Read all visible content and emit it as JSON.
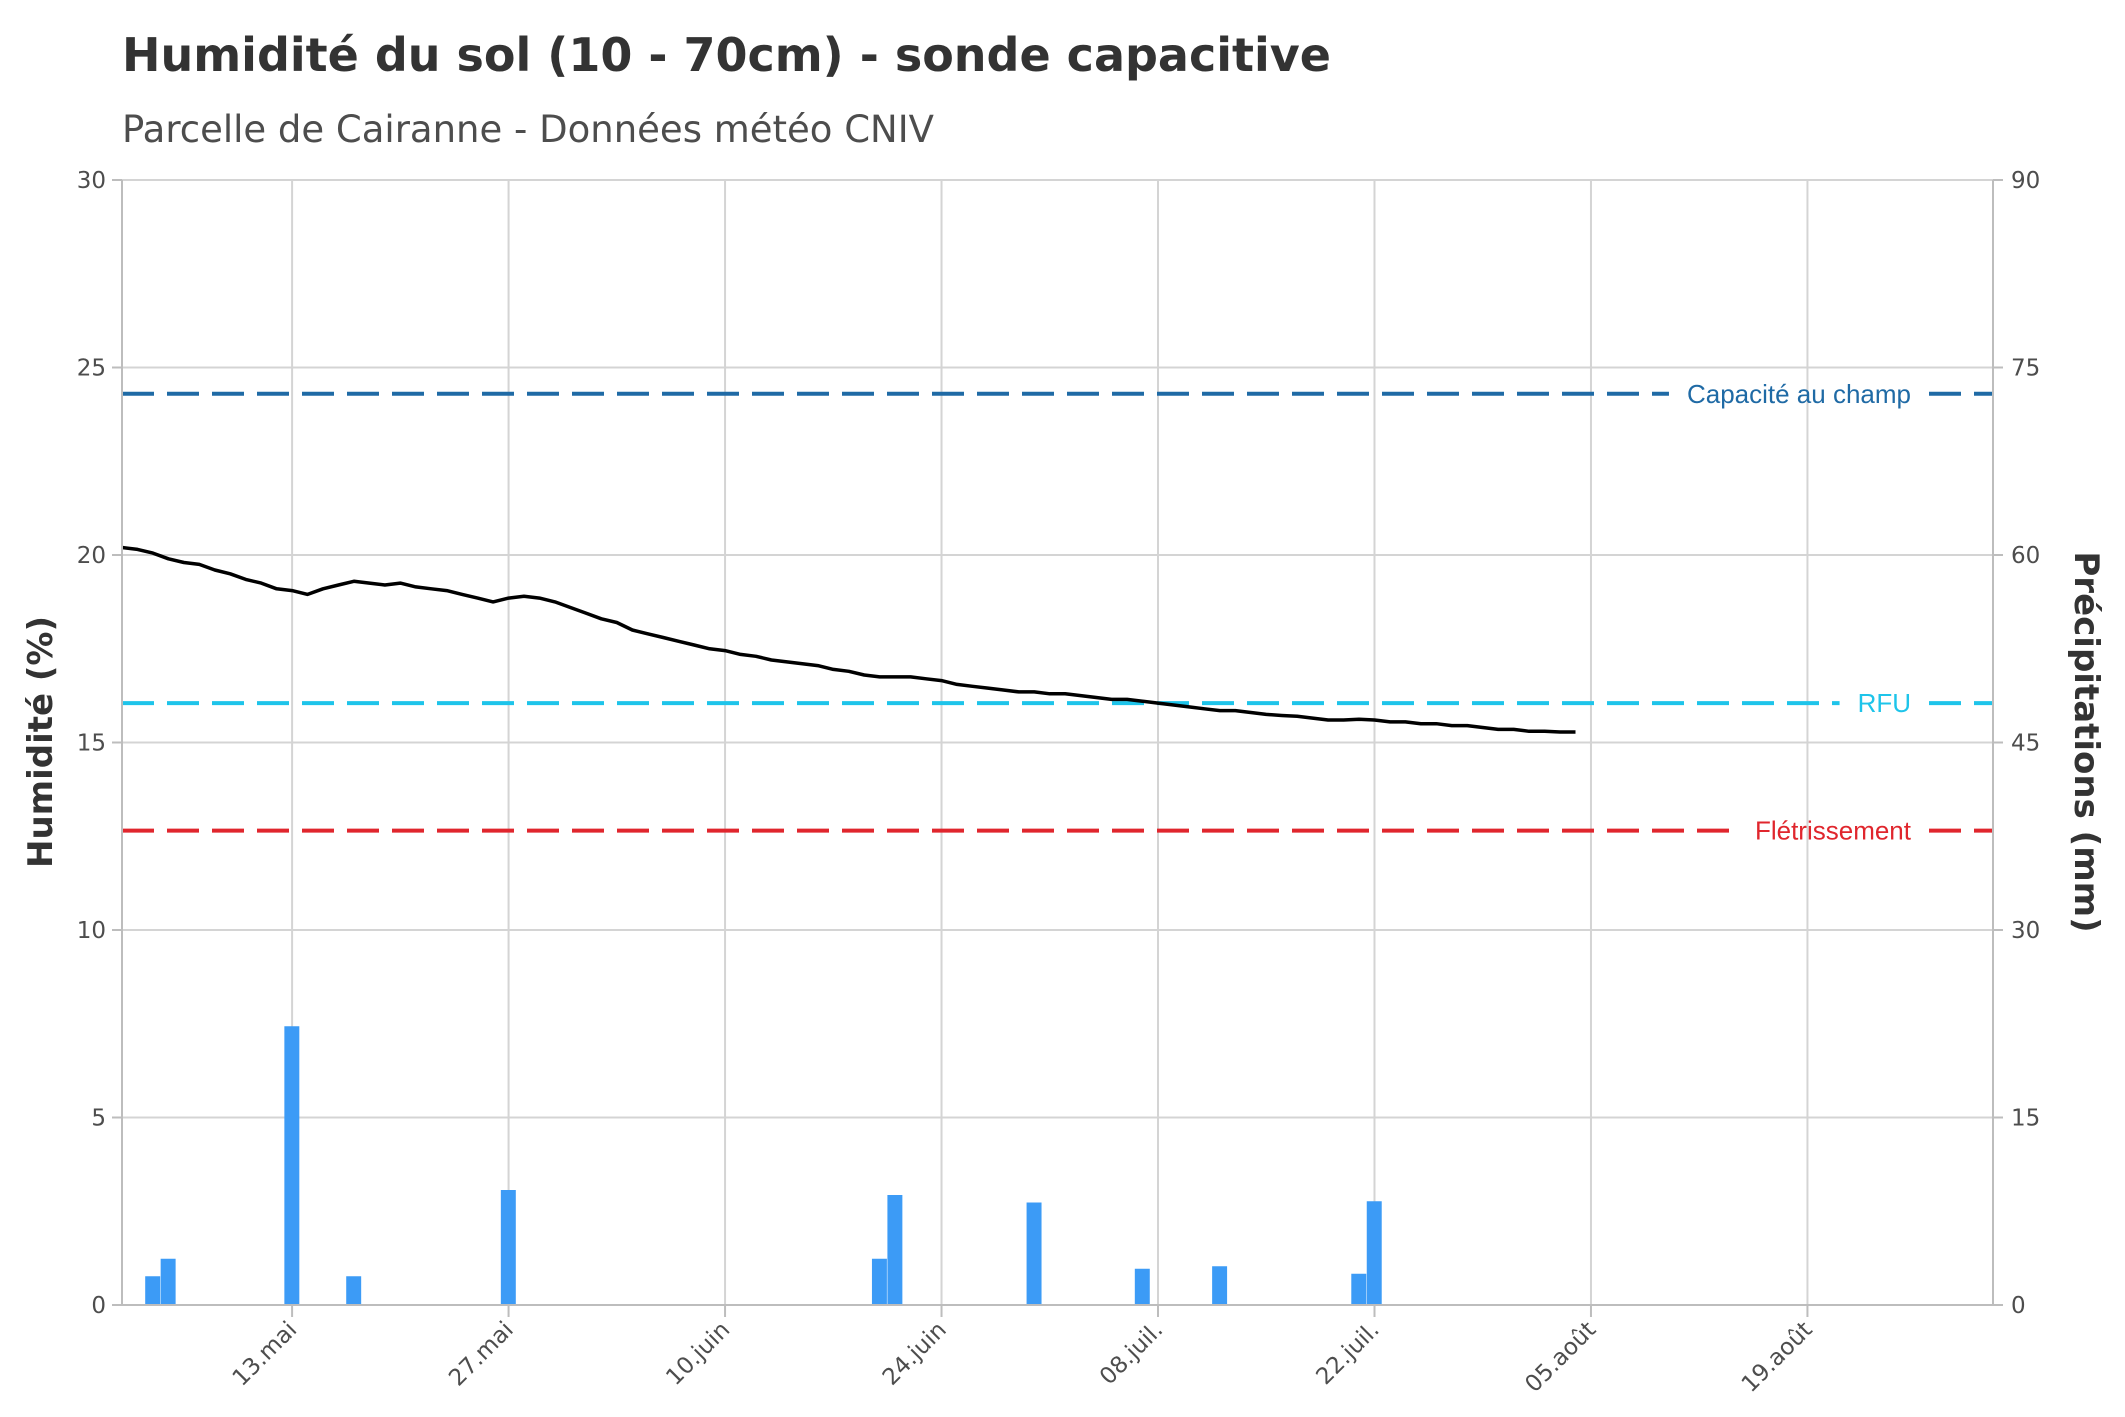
{
  "title": "Humidité du sol (10 - 70cm) - sonde capacitive",
  "subtitle": "Parcelle de Cairanne - Données météo CNIV",
  "chart_data": {
    "type": "line",
    "x_axis": {
      "ticks": [
        "2022-05-13",
        "2022-05-27",
        "2022-06-10",
        "2022-06-24",
        "2022-07-08",
        "2022-07-22",
        "2022-08-05",
        "2022-08-19"
      ],
      "tick_labels": [
        "13.mai",
        "27.mai",
        "10.juin",
        "24.juin",
        "08.juil.",
        "22.juil.",
        "05.août",
        "19.août"
      ],
      "range": [
        "2022-05-02",
        "2022-08-31"
      ],
      "grid": true
    },
    "y_left": {
      "label": "Humidité (%)",
      "range": [
        0,
        30
      ],
      "ticks": [
        0,
        5,
        10,
        15,
        20,
        25,
        30
      ]
    },
    "y_right": {
      "label": "Précipitations (mm)",
      "range": [
        0,
        90
      ],
      "ticks": [
        0,
        15,
        30,
        45,
        60,
        75,
        90
      ]
    },
    "reference_lines": [
      {
        "name": "Capacité au champ",
        "value": 24.3,
        "color": "#1f6aa5"
      },
      {
        "name": "RFU",
        "value": 16.05,
        "color": "#1ec4ea"
      },
      {
        "name": "Flétrissement",
        "value": 12.65,
        "color": "#e0262d"
      }
    ],
    "series": [
      {
        "type": "line",
        "axis": "left",
        "color": "#000000",
        "points": [
          [
            "2022-05-02",
            20.2
          ],
          [
            "2022-05-03",
            20.15
          ],
          [
            "2022-05-04",
            20.05
          ],
          [
            "2022-05-05",
            19.9
          ],
          [
            "2022-05-06",
            19.8
          ],
          [
            "2022-05-07",
            19.75
          ],
          [
            "2022-05-08",
            19.6
          ],
          [
            "2022-05-09",
            19.5
          ],
          [
            "2022-05-10",
            19.35
          ],
          [
            "2022-05-11",
            19.25
          ],
          [
            "2022-05-12",
            19.1
          ],
          [
            "2022-05-13",
            19.05
          ],
          [
            "2022-05-14",
            18.95
          ],
          [
            "2022-05-15",
            19.1
          ],
          [
            "2022-05-16",
            19.2
          ],
          [
            "2022-05-17",
            19.3
          ],
          [
            "2022-05-18",
            19.25
          ],
          [
            "2022-05-19",
            19.2
          ],
          [
            "2022-05-20",
            19.25
          ],
          [
            "2022-05-21",
            19.15
          ],
          [
            "2022-05-22",
            19.1
          ],
          [
            "2022-05-23",
            19.05
          ],
          [
            "2022-05-24",
            18.95
          ],
          [
            "2022-05-25",
            18.85
          ],
          [
            "2022-05-26",
            18.75
          ],
          [
            "2022-05-27",
            18.85
          ],
          [
            "2022-05-28",
            18.9
          ],
          [
            "2022-05-29",
            18.85
          ],
          [
            "2022-05-30",
            18.75
          ],
          [
            "2022-05-31",
            18.6
          ],
          [
            "2022-06-01",
            18.45
          ],
          [
            "2022-06-02",
            18.3
          ],
          [
            "2022-06-03",
            18.2
          ],
          [
            "2022-06-04",
            18.0
          ],
          [
            "2022-06-05",
            17.9
          ],
          [
            "2022-06-06",
            17.8
          ],
          [
            "2022-06-07",
            17.7
          ],
          [
            "2022-06-08",
            17.6
          ],
          [
            "2022-06-09",
            17.5
          ],
          [
            "2022-06-10",
            17.45
          ],
          [
            "2022-06-11",
            17.35
          ],
          [
            "2022-06-12",
            17.3
          ],
          [
            "2022-06-13",
            17.2
          ],
          [
            "2022-06-14",
            17.15
          ],
          [
            "2022-06-15",
            17.1
          ],
          [
            "2022-06-16",
            17.05
          ],
          [
            "2022-06-17",
            16.95
          ],
          [
            "2022-06-18",
            16.9
          ],
          [
            "2022-06-19",
            16.8
          ],
          [
            "2022-06-20",
            16.75
          ],
          [
            "2022-06-21",
            16.75
          ],
          [
            "2022-06-22",
            16.75
          ],
          [
            "2022-06-23",
            16.7
          ],
          [
            "2022-06-24",
            16.65
          ],
          [
            "2022-06-25",
            16.55
          ],
          [
            "2022-06-26",
            16.5
          ],
          [
            "2022-06-27",
            16.45
          ],
          [
            "2022-06-28",
            16.4
          ],
          [
            "2022-06-29",
            16.35
          ],
          [
            "2022-06-30",
            16.35
          ],
          [
            "2022-07-01",
            16.3
          ],
          [
            "2022-07-02",
            16.3
          ],
          [
            "2022-07-03",
            16.25
          ],
          [
            "2022-07-04",
            16.2
          ],
          [
            "2022-07-05",
            16.15
          ],
          [
            "2022-07-06",
            16.15
          ],
          [
            "2022-07-07",
            16.1
          ],
          [
            "2022-07-08",
            16.05
          ],
          [
            "2022-07-09",
            16.0
          ],
          [
            "2022-07-10",
            15.95
          ],
          [
            "2022-07-11",
            15.9
          ],
          [
            "2022-07-12",
            15.85
          ],
          [
            "2022-07-13",
            15.85
          ],
          [
            "2022-07-14",
            15.8
          ],
          [
            "2022-07-15",
            15.75
          ],
          [
            "2022-07-16",
            15.72
          ],
          [
            "2022-07-17",
            15.7
          ],
          [
            "2022-07-18",
            15.65
          ],
          [
            "2022-07-19",
            15.6
          ],
          [
            "2022-07-20",
            15.6
          ],
          [
            "2022-07-21",
            15.62
          ],
          [
            "2022-07-22",
            15.6
          ],
          [
            "2022-07-23",
            15.55
          ],
          [
            "2022-07-24",
            15.55
          ],
          [
            "2022-07-25",
            15.5
          ],
          [
            "2022-07-26",
            15.5
          ],
          [
            "2022-07-27",
            15.45
          ],
          [
            "2022-07-28",
            15.45
          ],
          [
            "2022-07-29",
            15.4
          ],
          [
            "2022-07-30",
            15.35
          ],
          [
            "2022-07-31",
            15.35
          ],
          [
            "2022-08-01",
            15.3
          ],
          [
            "2022-08-02",
            15.3
          ],
          [
            "2022-08-03",
            15.28
          ],
          [
            "2022-08-04",
            15.28
          ]
        ]
      },
      {
        "type": "bar",
        "axis": "right",
        "color": "#3c9bf6",
        "points": [
          [
            "2022-05-04",
            2.3
          ],
          [
            "2022-05-05",
            3.7
          ],
          [
            "2022-05-13",
            22.3
          ],
          [
            "2022-05-17",
            2.3
          ],
          [
            "2022-05-27",
            9.2
          ],
          [
            "2022-06-20",
            3.7
          ],
          [
            "2022-06-21",
            8.8
          ],
          [
            "2022-06-30",
            8.2
          ],
          [
            "2022-07-07",
            2.9
          ],
          [
            "2022-07-12",
            3.1
          ],
          [
            "2022-07-21",
            2.5
          ],
          [
            "2022-07-22",
            8.3
          ]
        ]
      }
    ]
  }
}
